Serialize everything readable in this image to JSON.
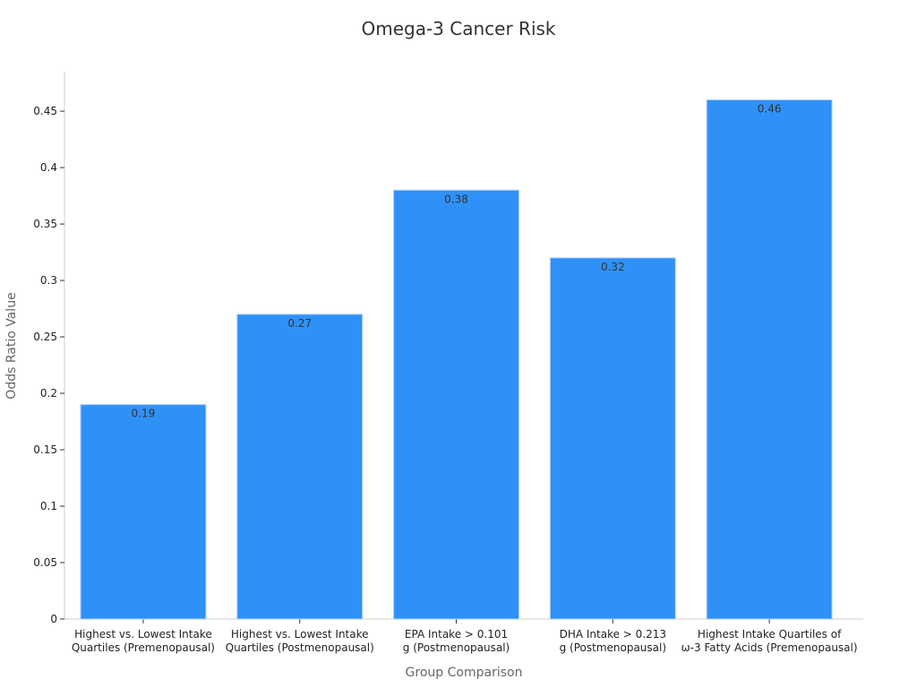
{
  "chart_data": {
    "type": "bar",
    "title": "Omega-3 Cancer Risk",
    "xlabel": "Group Comparison",
    "ylabel": "Odds Ratio Value",
    "ylim": [
      0,
      0.485
    ],
    "yticks": [
      "0",
      "0.05",
      "0.1",
      "0.15",
      "0.2",
      "0.25",
      "0.3",
      "0.35",
      "0.4",
      "0.45"
    ],
    "grid": false,
    "bar_color": "#2f91f8",
    "categories": [
      [
        "Highest vs. Lowest Intake",
        "Quartiles (Premenopausal)"
      ],
      [
        "Highest vs. Lowest Intake",
        "Quartiles (Postmenopausal)"
      ],
      [
        "EPA Intake > 0.101",
        "g (Postmenopausal)"
      ],
      [
        "DHA Intake > 0.213",
        "g (Postmenopausal)"
      ],
      [
        "Highest Intake Quartiles of",
        "ω-3 Fatty Acids (Premenopausal)"
      ]
    ],
    "values": [
      0.19,
      0.27,
      0.38,
      0.32,
      0.46
    ],
    "value_labels": [
      "0.19",
      "0.27",
      "0.38",
      "0.32",
      "0.46"
    ]
  }
}
